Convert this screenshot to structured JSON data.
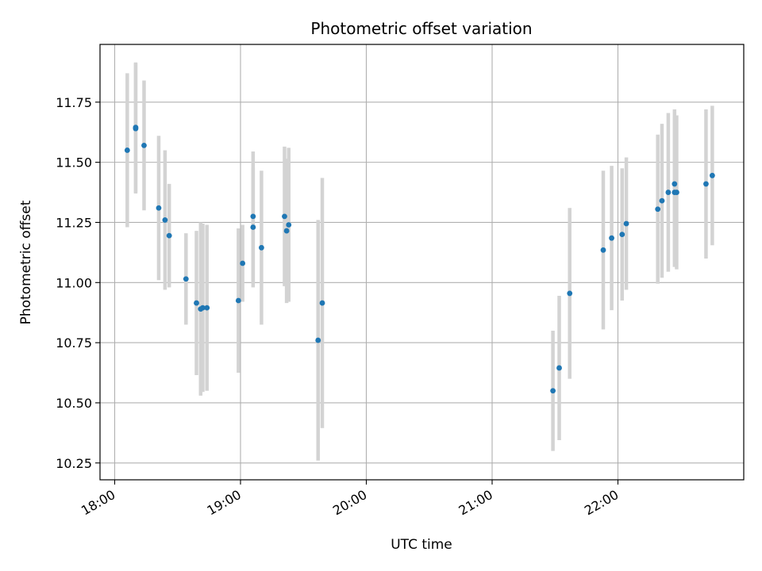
{
  "chart_data": {
    "type": "scatter",
    "title": "Photometric offset variation",
    "xlabel": "UTC time",
    "ylabel": "Photometric offset",
    "x_ticks": [
      "18:00",
      "19:00",
      "20:00",
      "21:00",
      "22:00"
    ],
    "y_ticks": [
      "10.25",
      "10.50",
      "10.75",
      "11.00",
      "11.25",
      "11.50",
      "11.75"
    ],
    "xlim": [
      "17:53",
      "23:00"
    ],
    "ylim": [
      10.18,
      11.99
    ],
    "grid": true,
    "colors": {
      "point": "#1f77b4",
      "errorbar": "#d3d3d3",
      "grid": "#b0b0b0"
    },
    "points": [
      {
        "time": "18:06",
        "y": 11.55,
        "err": 0.32
      },
      {
        "time": "18:10",
        "y": 11.64,
        "err": 0.27
      },
      {
        "time": "18:10",
        "y": 11.645,
        "err": 0.27
      },
      {
        "time": "18:14",
        "y": 11.57,
        "err": 0.27
      },
      {
        "time": "18:21",
        "y": 11.31,
        "err": 0.3
      },
      {
        "time": "18:24",
        "y": 11.26,
        "err": 0.29
      },
      {
        "time": "18:26",
        "y": 11.195,
        "err": 0.215
      },
      {
        "time": "18:34",
        "y": 11.015,
        "err": 0.19
      },
      {
        "time": "18:39",
        "y": 10.915,
        "err": 0.3
      },
      {
        "time": "18:41",
        "y": 10.89,
        "err": 0.36
      },
      {
        "time": "18:42",
        "y": 10.895,
        "err": 0.35
      },
      {
        "time": "18:44",
        "y": 10.895,
        "err": 0.345
      },
      {
        "time": "18:59",
        "y": 10.925,
        "err": 0.3
      },
      {
        "time": "19:01",
        "y": 11.08,
        "err": 0.16
      },
      {
        "time": "19:06",
        "y": 11.275,
        "err": 0.27
      },
      {
        "time": "19:06",
        "y": 11.23,
        "err": 0.25
      },
      {
        "time": "19:10",
        "y": 11.145,
        "err": 0.32
      },
      {
        "time": "19:21",
        "y": 11.275,
        "err": 0.29
      },
      {
        "time": "19:22",
        "y": 11.215,
        "err": 0.3
      },
      {
        "time": "19:23",
        "y": 11.24,
        "err": 0.32
      },
      {
        "time": "19:37",
        "y": 10.76,
        "err": 0.5
      },
      {
        "time": "19:39",
        "y": 10.915,
        "err": 0.52
      },
      {
        "time": "21:29",
        "y": 10.55,
        "err": 0.25
      },
      {
        "time": "21:32",
        "y": 10.645,
        "err": 0.3
      },
      {
        "time": "21:37",
        "y": 10.955,
        "err": 0.355
      },
      {
        "time": "21:53",
        "y": 11.135,
        "err": 0.33
      },
      {
        "time": "21:57",
        "y": 11.185,
        "err": 0.3
      },
      {
        "time": "22:02",
        "y": 11.2,
        "err": 0.275
      },
      {
        "time": "22:04",
        "y": 11.245,
        "err": 0.275
      },
      {
        "time": "22:19",
        "y": 11.305,
        "err": 0.31
      },
      {
        "time": "22:21",
        "y": 11.34,
        "err": 0.32
      },
      {
        "time": "22:24",
        "y": 11.375,
        "err": 0.33
      },
      {
        "time": "22:27",
        "y": 11.41,
        "err": 0.31
      },
      {
        "time": "22:27",
        "y": 11.375,
        "err": 0.31
      },
      {
        "time": "22:28",
        "y": 11.375,
        "err": 0.32
      },
      {
        "time": "22:42",
        "y": 11.41,
        "err": 0.31
      },
      {
        "time": "22:45",
        "y": 11.445,
        "err": 0.29
      }
    ]
  }
}
